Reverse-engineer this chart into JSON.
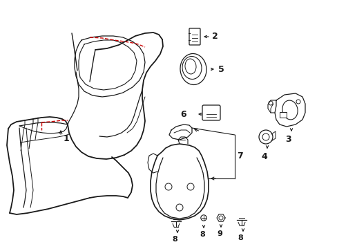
{
  "bg_color": "#ffffff",
  "line_color": "#1a1a1a",
  "red_color": "#cc0000",
  "fig_width": 4.89,
  "fig_height": 3.6,
  "dpi": 100
}
